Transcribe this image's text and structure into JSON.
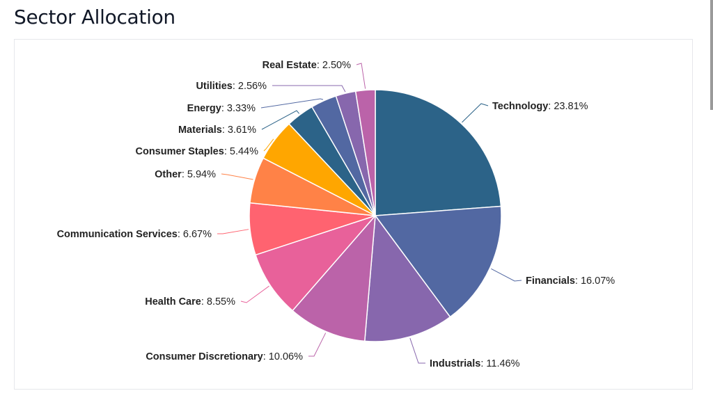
{
  "page": {
    "title": "Sector Allocation"
  },
  "chart_data": {
    "type": "pie",
    "title": "Sector Allocation",
    "start_angle": "12 o'clock, clockwise",
    "slices": [
      {
        "label": "Technology",
        "value": 23.81,
        "display": ": 23.81%",
        "color": "#2c6388"
      },
      {
        "label": "Financials",
        "value": 16.07,
        "display": ": 16.07%",
        "color": "#5268a2"
      },
      {
        "label": "Industrials",
        "value": 11.46,
        "display": ": 11.46%",
        "color": "#8767ad"
      },
      {
        "label": "Consumer Discretionary",
        "value": 10.06,
        "display": ": 10.06%",
        "color": "#bb63a9"
      },
      {
        "label": "Health Care",
        "value": 8.55,
        "display": ": 8.55%",
        "color": "#e8619a"
      },
      {
        "label": "Communication Services",
        "value": 6.67,
        "display": ": 6.67%",
        "color": "#ff6370"
      },
      {
        "label": "Other",
        "value": 5.94,
        "display": ": 5.94%",
        "color": "#ff8247"
      },
      {
        "label": "Consumer Staples",
        "value": 5.44,
        "display": ": 5.44%",
        "color": "#ffa600"
      },
      {
        "label": "Materials",
        "value": 3.61,
        "display": ": 3.61%",
        "color": "#2c6388"
      },
      {
        "label": "Energy",
        "value": 3.33,
        "display": ": 3.33%",
        "color": "#5268a2"
      },
      {
        "label": "Utilities",
        "value": 2.56,
        "display": ": 2.56%",
        "color": "#8767ad"
      },
      {
        "label": "Real Estate",
        "value": 2.5,
        "display": ": 2.50%",
        "color": "#bb63a9"
      }
    ]
  }
}
